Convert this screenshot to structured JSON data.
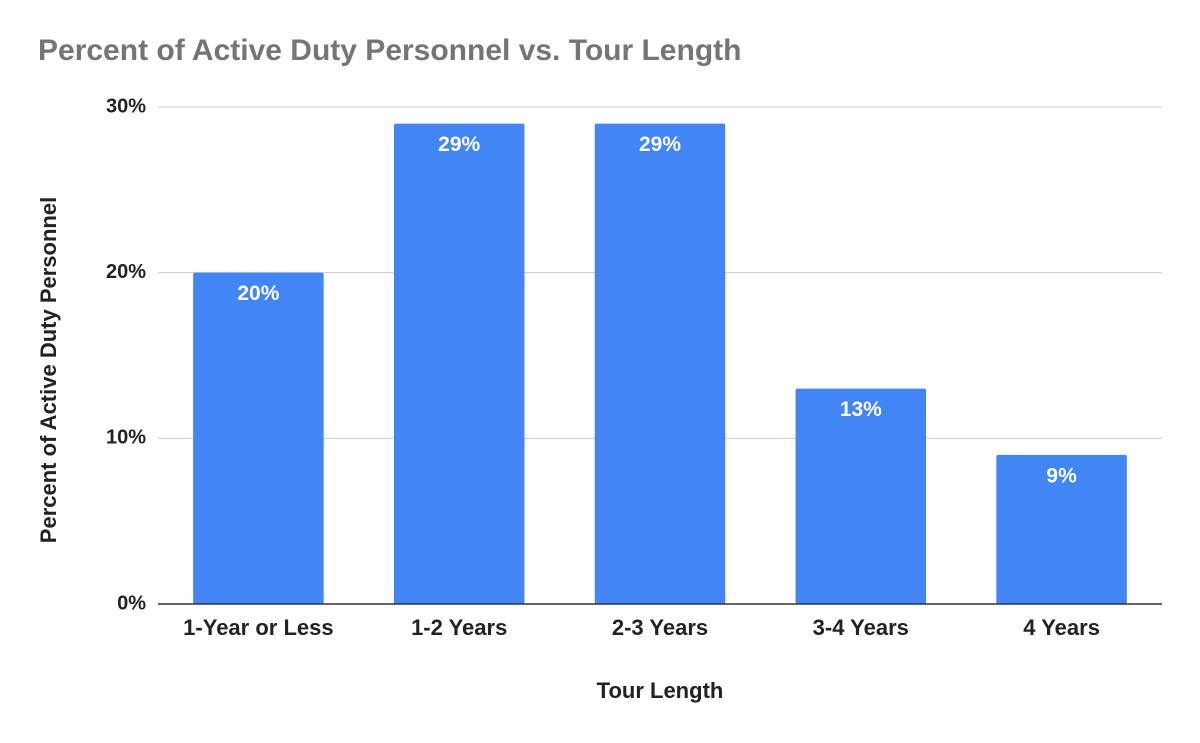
{
  "chart_data": {
    "type": "bar",
    "title": "Percent of Active Duty Personnel vs. Tour Length",
    "x_label": "Tour Length",
    "y_label": "Percent of Active Duty Personnel",
    "categories": [
      "1-Year or Less",
      "1-2 Years",
      "2-3 Years",
      "3-4 Years",
      "4 Years"
    ],
    "values": [
      20,
      29,
      29,
      13,
      9
    ],
    "value_labels": [
      "20%",
      "29%",
      "29%",
      "13%",
      "9%"
    ],
    "color": "#4285f4",
    "ylim": [
      0,
      30
    ],
    "yticks": [
      {
        "value": 0,
        "label": "0%"
      },
      {
        "value": 10,
        "label": "10%"
      },
      {
        "value": 20,
        "label": "20%"
      },
      {
        "value": 30,
        "label": "30%"
      }
    ],
    "grid": true
  }
}
